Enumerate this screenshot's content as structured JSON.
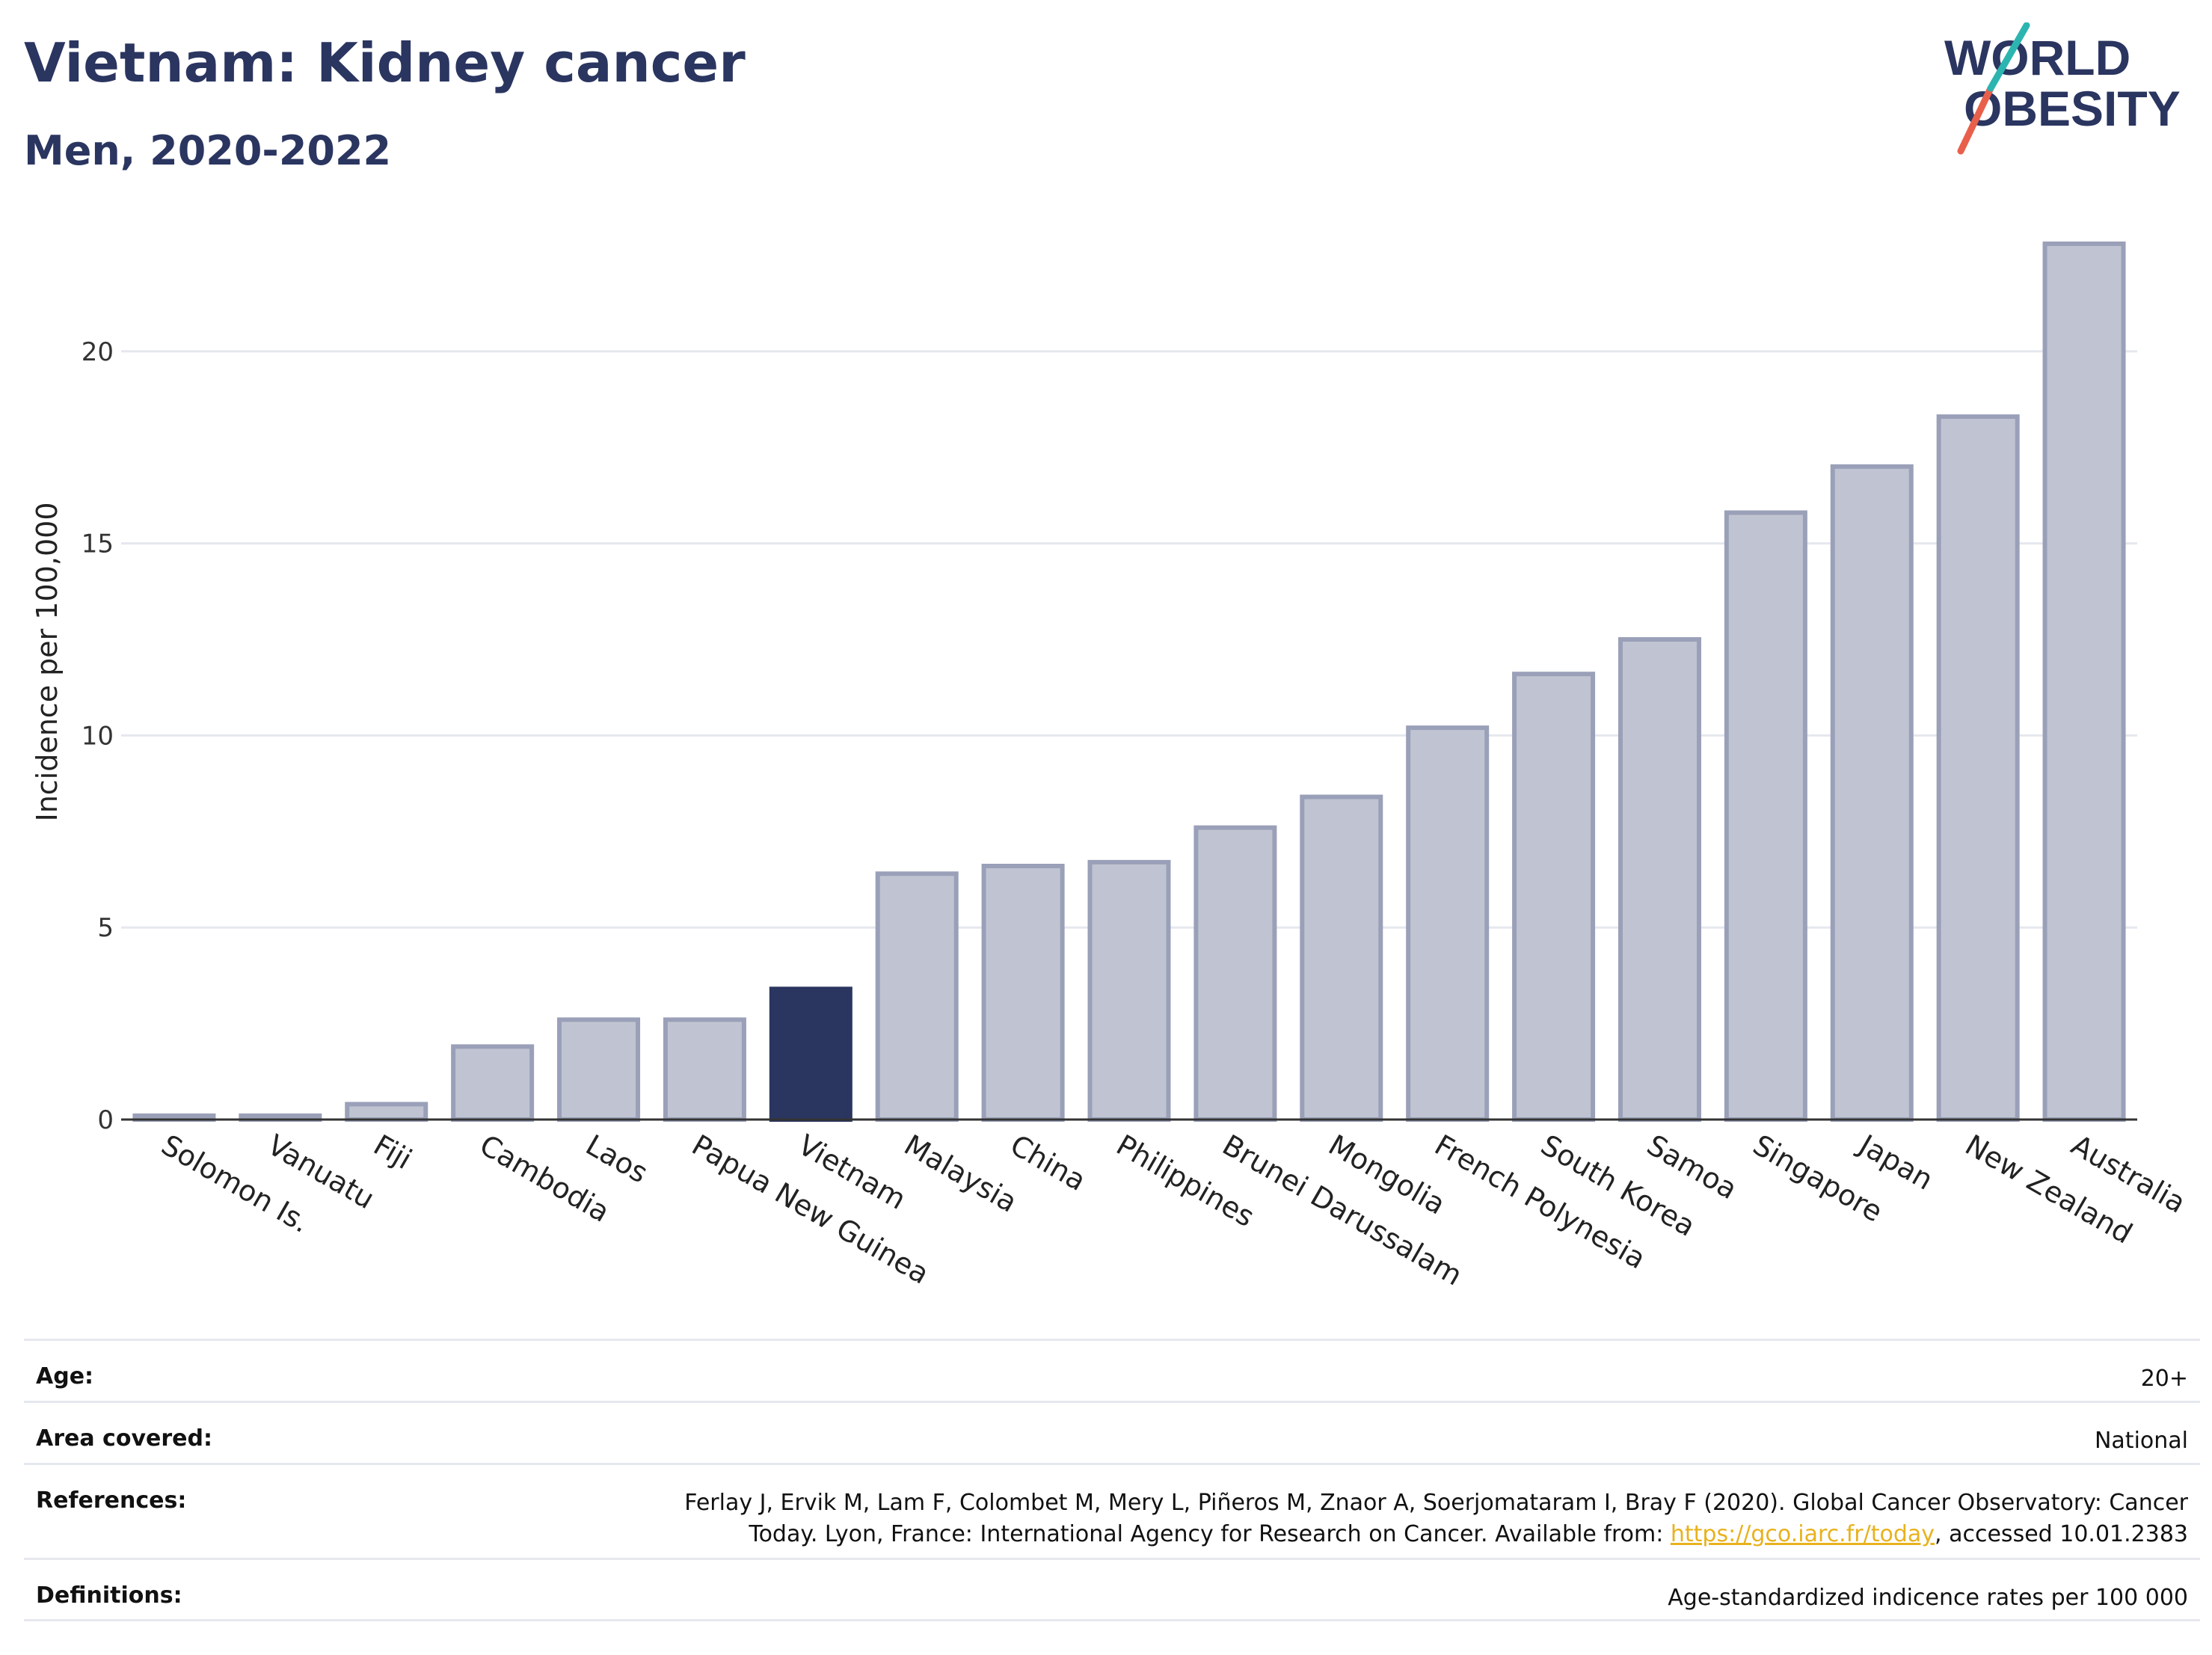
{
  "header": {
    "title": "Vietnam: Kidney cancer",
    "subtitle": "Men, 2020-2022"
  },
  "logo": {
    "line1": "WORLD",
    "line2": "OBESITY",
    "colors": {
      "text": "#2a3560",
      "accent_red": "#e8604c",
      "accent_teal": "#2cb5b0"
    }
  },
  "colors": {
    "highlight": "#2a3560",
    "bar_fill": "#c0c4d2",
    "bar_stroke": "#9aa0b8",
    "grid": "#e6e8ef",
    "text": "#2a3560"
  },
  "chart_data": {
    "type": "bar",
    "title": "Vietnam: Kidney cancer",
    "subtitle": "Men, 2020-2022",
    "xlabel": "",
    "ylabel": "Incidence per 100,000",
    "ylim": [
      0,
      23.5
    ],
    "yticks": [
      0,
      5,
      10,
      15,
      20
    ],
    "grid": true,
    "highlight": "Vietnam",
    "categories": [
      "Solomon Is.",
      "Vanuatu",
      "Fiji",
      "Cambodia",
      "Laos",
      "Papua New Guinea",
      "Vietnam",
      "Malaysia",
      "China",
      "Philippines",
      "Brunei Darussalam",
      "Mongolia",
      "French Polynesia",
      "South Korea",
      "Samoa",
      "Singapore",
      "Japan",
      "New Zealand",
      "Australia"
    ],
    "values": [
      0.1,
      0.1,
      0.4,
      1.9,
      2.6,
      2.6,
      3.4,
      6.4,
      6.6,
      6.7,
      7.6,
      8.4,
      10.2,
      11.6,
      12.5,
      15.8,
      17.0,
      18.3,
      22.8
    ]
  },
  "info": {
    "age_label": "Age:",
    "age_value": "20+",
    "area_label": "Area covered:",
    "area_value": "National",
    "references_label": "References:",
    "references_line1": "Ferlay J, Ervik M, Lam F, Colombet M, Mery L, Piñeros M, Znaor A, Soerjomataram I, Bray F (2020). Global Cancer Observatory: Cancer",
    "references_line2_pre": "Today. Lyon, France: International Agency for Research on Cancer. Available from: ",
    "references_link": "https://gco.iarc.fr/today",
    "references_line2_post": ", accessed 10.01.2383",
    "definitions_label": "Definitions:",
    "definitions_value": "Age-standardized indicence rates per 100 000"
  }
}
